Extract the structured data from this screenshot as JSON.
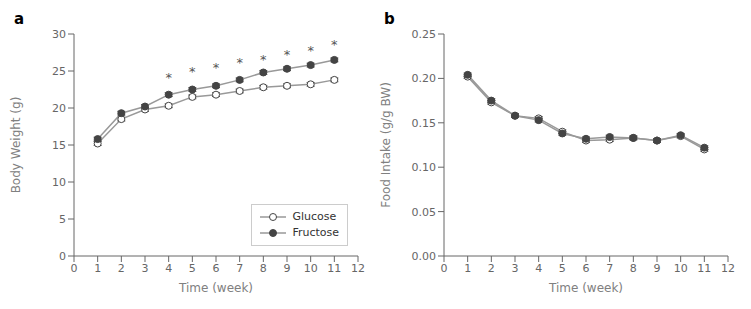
{
  "chart_data": [
    {
      "type": "line",
      "title": "a",
      "xlabel": "Time (week)",
      "ylabel": "Body Weight (g)",
      "xlim": [
        0,
        12
      ],
      "ylim": [
        0,
        30
      ],
      "xticks": [
        0,
        1,
        2,
        3,
        4,
        5,
        6,
        7,
        8,
        9,
        10,
        11,
        12
      ],
      "yticks": [
        0,
        5,
        10,
        15,
        20,
        25,
        30
      ],
      "grid": false,
      "legend": "lower right",
      "x": [
        1,
        2,
        3,
        4,
        5,
        6,
        7,
        8,
        9,
        10,
        11
      ],
      "series": [
        {
          "name": "Glucose",
          "color": "#999999",
          "marker": "circle_open",
          "values": [
            15.2,
            18.5,
            19.8,
            20.3,
            21.5,
            21.8,
            22.3,
            22.8,
            23.0,
            23.2,
            23.8
          ],
          "errors": [
            0.25,
            0.25,
            0.25,
            0.25,
            0.25,
            0.25,
            0.25,
            0.25,
            0.25,
            0.25,
            0.25
          ]
        },
        {
          "name": "Fructose",
          "color": "#999999",
          "marker": "circle",
          "values": [
            15.8,
            19.3,
            20.2,
            21.8,
            22.5,
            23.0,
            23.8,
            24.8,
            25.3,
            25.8,
            26.5
          ],
          "errors": [
            0.25,
            0.25,
            0.25,
            0.25,
            0.25,
            0.25,
            0.25,
            0.25,
            0.25,
            0.25,
            0.25
          ]
        }
      ],
      "annotations": [
        {
          "x": 4,
          "y": 23.5,
          "text": "*"
        },
        {
          "x": 5,
          "y": 24.3,
          "text": "*"
        },
        {
          "x": 6,
          "y": 24.9,
          "text": "*"
        },
        {
          "x": 7,
          "y": 25.5,
          "text": "*"
        },
        {
          "x": 8,
          "y": 26.0,
          "text": "*"
        },
        {
          "x": 9,
          "y": 26.6,
          "text": "*"
        },
        {
          "x": 10,
          "y": 27.2,
          "text": "*"
        },
        {
          "x": 11,
          "y": 28.0,
          "text": "*"
        }
      ]
    },
    {
      "type": "line",
      "title": "b",
      "xlabel": "Time (week)",
      "ylabel": "Food Intake (g/g BW)",
      "xlim": [
        0,
        12
      ],
      "ylim": [
        0.0,
        0.25
      ],
      "xticks": [
        0,
        1,
        2,
        3,
        4,
        5,
        6,
        7,
        8,
        9,
        10,
        11,
        12
      ],
      "yticks": [
        {
          "value": 0,
          "label": "0.00"
        },
        0.05,
        {
          "value": 0.1,
          "label": "0.10"
        },
        0.15,
        {
          "value": 0.2,
          "label": "0.20"
        },
        0.25
      ],
      "grid": false,
      "x": [
        1,
        2,
        3,
        4,
        5,
        6,
        7,
        8,
        9,
        10,
        11
      ],
      "series": [
        {
          "color": "#999999",
          "marker": "circle_open",
          "values": [
            0.202,
            0.173,
            0.158,
            0.155,
            0.14,
            0.13,
            0.131,
            0.133,
            0.13,
            0.135,
            0.12
          ],
          "errors": [
            0.002,
            0.002,
            0.002,
            0.002,
            0.002,
            0.002,
            0.002,
            0.002,
            0.002,
            0.002,
            0.002
          ]
        },
        {
          "color": "#999999",
          "marker": "circle",
          "values": [
            0.204,
            0.175,
            0.158,
            0.153,
            0.138,
            0.132,
            0.134,
            0.133,
            0.13,
            0.136,
            0.122
          ],
          "errors": [
            0.002,
            0.002,
            0.002,
            0.002,
            0.002,
            0.002,
            0.002,
            0.002,
            0.002,
            0.002,
            0.002
          ]
        }
      ]
    }
  ]
}
